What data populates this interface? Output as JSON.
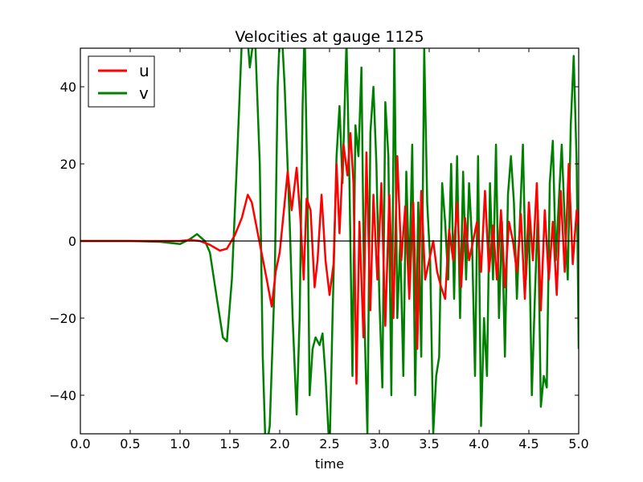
{
  "chart_data": {
    "type": "line",
    "title": "Velocities at gauge 1125",
    "xlabel": "time",
    "ylabel": "",
    "xlim": [
      0.0,
      5.0
    ],
    "ylim": [
      -50,
      50
    ],
    "xticks": [
      "0.0",
      "0.5",
      "1.0",
      "1.5",
      "2.0",
      "2.5",
      "3.0",
      "3.5",
      "4.0",
      "4.5",
      "5.0"
    ],
    "yticks": [
      "−40",
      "−20",
      "0",
      "20",
      "40"
    ],
    "ytick_values": [
      -40,
      -20,
      0,
      20,
      40
    ],
    "xtick_values": [
      0.0,
      0.5,
      1.0,
      1.5,
      2.0,
      2.5,
      3.0,
      3.5,
      4.0,
      4.5,
      5.0
    ],
    "reference_line_y": 0,
    "legend_position": "top-left",
    "grid": false,
    "series": [
      {
        "name": "u",
        "color": "#ff0000",
        "x": [
          0.0,
          0.5,
          0.8,
          1.0,
          1.1,
          1.2,
          1.3,
          1.4,
          1.47,
          1.55,
          1.62,
          1.68,
          1.72,
          1.78,
          1.84,
          1.87,
          1.92,
          1.96,
          2.0,
          2.05,
          2.08,
          2.12,
          2.17,
          2.21,
          2.24,
          2.27,
          2.31,
          2.35,
          2.38,
          2.42,
          2.46,
          2.5,
          2.54,
          2.57,
          2.6,
          2.64,
          2.68,
          2.71,
          2.74,
          2.77,
          2.8,
          2.84,
          2.87,
          2.91,
          2.94,
          2.98,
          3.02,
          3.06,
          3.1,
          3.14,
          3.18,
          3.22,
          3.26,
          3.3,
          3.34,
          3.38,
          3.42,
          3.46,
          3.5,
          3.54,
          3.58,
          3.62,
          3.66,
          3.7,
          3.74,
          3.78,
          3.82,
          3.86,
          3.9,
          3.94,
          3.98,
          4.02,
          4.06,
          4.1,
          4.14,
          4.18,
          4.22,
          4.26,
          4.3,
          4.34,
          4.38,
          4.42,
          4.46,
          4.5,
          4.54,
          4.58,
          4.62,
          4.66,
          4.7,
          4.74,
          4.78,
          4.82,
          4.86,
          4.9,
          4.94,
          4.98,
          5.0
        ],
        "y": [
          0.0,
          0.0,
          0.0,
          0.0,
          0.3,
          0.0,
          -1.0,
          -2.5,
          -2.0,
          1.5,
          6.0,
          12.0,
          10.0,
          2.0,
          -6.0,
          -10.0,
          -17.0,
          -8.0,
          -3.0,
          10.0,
          18.0,
          8.0,
          19.0,
          5.0,
          -10.0,
          11.0,
          8.0,
          -12.0,
          -5.0,
          12.0,
          -5.0,
          -14.0,
          -6.0,
          20.0,
          2.0,
          25.0,
          17.0,
          28.0,
          15.0,
          -37.0,
          5.0,
          -25.0,
          23.0,
          -18.0,
          12.0,
          -10.0,
          15.0,
          -22.0,
          12.0,
          -20.0,
          22.0,
          -5.0,
          9.0,
          -15.0,
          10.0,
          -28.0,
          13.0,
          -10.0,
          -5.0,
          0.0,
          -8.0,
          -12.0,
          -15.0,
          3.0,
          -5.0,
          10.0,
          -12.0,
          6.0,
          -5.0,
          0.0,
          5.0,
          -8.0,
          13.0,
          -8.0,
          4.0,
          -10.0,
          8.0,
          -12.0,
          5.0,
          0.0,
          -8.0,
          7.0,
          -15.0,
          10.0,
          -5.0,
          15.0,
          -18.0,
          8.0,
          -10.0,
          5.0,
          -14.0,
          13.0,
          -8.0,
          20.0,
          -6.0,
          8.0,
          4.0
        ]
      },
      {
        "name": "v",
        "color": "#008000",
        "x": [
          0.0,
          0.5,
          0.8,
          1.0,
          1.1,
          1.17,
          1.25,
          1.3,
          1.37,
          1.43,
          1.47,
          1.52,
          1.57,
          1.62,
          1.67,
          1.7,
          1.75,
          1.8,
          1.83,
          1.86,
          1.9,
          1.95,
          1.98,
          2.01,
          2.05,
          2.1,
          2.13,
          2.17,
          2.2,
          2.23,
          2.25,
          2.28,
          2.3,
          2.33,
          2.36,
          2.4,
          2.43,
          2.46,
          2.5,
          2.53,
          2.57,
          2.6,
          2.63,
          2.67,
          2.7,
          2.73,
          2.76,
          2.79,
          2.82,
          2.85,
          2.88,
          2.91,
          2.94,
          2.97,
          3.0,
          3.03,
          3.06,
          3.09,
          3.12,
          3.15,
          3.18,
          3.21,
          3.24,
          3.27,
          3.3,
          3.33,
          3.36,
          3.39,
          3.42,
          3.45,
          3.48,
          3.51,
          3.54,
          3.57,
          3.6,
          3.63,
          3.66,
          3.69,
          3.72,
          3.75,
          3.78,
          3.81,
          3.84,
          3.87,
          3.9,
          3.93,
          3.96,
          3.99,
          4.02,
          4.05,
          4.08,
          4.11,
          4.14,
          4.17,
          4.2,
          4.23,
          4.26,
          4.29,
          4.32,
          4.35,
          4.38,
          4.41,
          4.44,
          4.47,
          4.5,
          4.53,
          4.56,
          4.59,
          4.62,
          4.65,
          4.68,
          4.71,
          4.74,
          4.77,
          4.8,
          4.83,
          4.86,
          4.89,
          4.92,
          4.95,
          4.98,
          5.0
        ],
        "y": [
          0.0,
          0.0,
          -0.2,
          -0.8,
          0.5,
          1.8,
          0.0,
          -3.0,
          -15.0,
          -25.0,
          -26.0,
          -10.0,
          20.0,
          52.0,
          55.0,
          45.0,
          55.0,
          20.0,
          -30.0,
          -55.0,
          -48.0,
          -10.0,
          40.0,
          60.0,
          40.0,
          5.0,
          -20.0,
          -45.0,
          -20.0,
          35.0,
          55.0,
          10.0,
          -40.0,
          -28.0,
          -25.0,
          -27.0,
          -24.0,
          -35.0,
          -55.0,
          -20.0,
          22.0,
          35.0,
          15.0,
          52.0,
          15.0,
          -35.0,
          30.0,
          22.0,
          45.0,
          -20.0,
          -50.0,
          28.0,
          40.0,
          20.0,
          -15.0,
          -38.0,
          36.0,
          22.0,
          -40.0,
          52.0,
          -20.0,
          0.0,
          -35.0,
          18.0,
          -10.0,
          25.0,
          -40.0,
          10.0,
          -30.0,
          50.0,
          10.0,
          -5.0,
          -50.0,
          -35.0,
          -30.0,
          15.0,
          5.0,
          -10.0,
          20.0,
          -15.0,
          22.0,
          -20.0,
          18.0,
          -10.0,
          15.0,
          0.0,
          -35.0,
          22.0,
          -48.0,
          -20.0,
          -35.0,
          15.0,
          -10.0,
          25.0,
          -20.0,
          5.0,
          -30.0,
          12.0,
          22.0,
          10.0,
          -15.0,
          5.0,
          25.0,
          -10.0,
          5.0,
          -40.0,
          -15.0,
          8.0,
          -43.0,
          -35.0,
          -38.0,
          15.0,
          26.0,
          -5.0,
          10.0,
          25.0,
          5.0,
          -10.0,
          30.0,
          48.0,
          20.0,
          -28.0
        ]
      }
    ]
  }
}
